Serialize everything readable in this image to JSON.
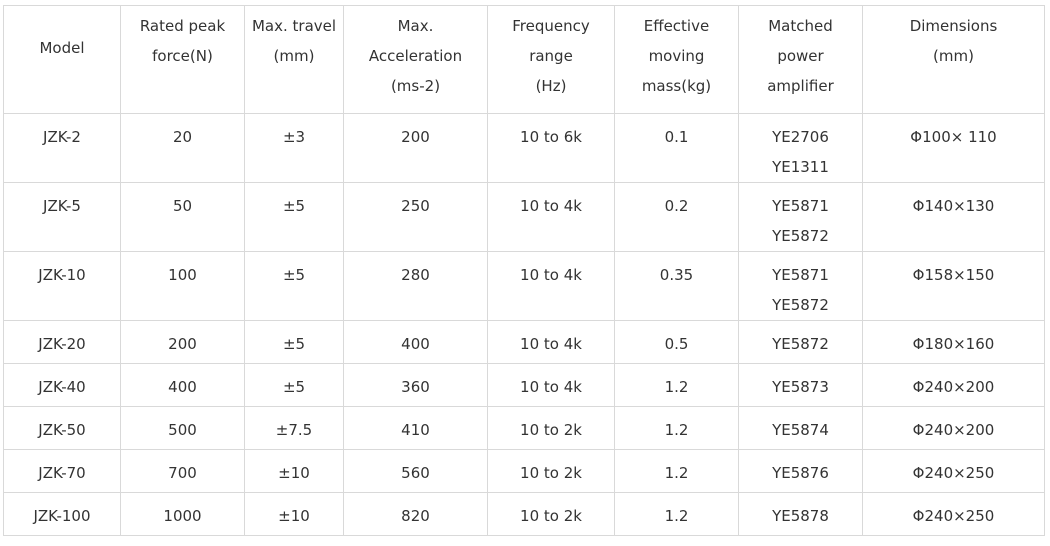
{
  "table": {
    "headers": [
      [
        "Model"
      ],
      [
        "Rated peak",
        "force(N)"
      ],
      [
        "Max. travel",
        "(mm)"
      ],
      [
        "Max.",
        "Acceleration",
        "(ms-2)"
      ],
      [
        "Frequency",
        "range",
        "(Hz)"
      ],
      [
        "Effective",
        "moving",
        "mass(kg)"
      ],
      [
        "Matched",
        "power",
        "amplifier"
      ],
      [
        "Dimensions",
        "(mm)"
      ]
    ],
    "rows": [
      {
        "model": "JZK-2",
        "force": "20",
        "travel": "±3",
        "accel": "200",
        "freq": "10 to 6k",
        "mass": "0.1",
        "amp1": "YE2706",
        "amp2": "YE1311",
        "dim": "Φ100× 110"
      },
      {
        "model": "JZK-5",
        "force": "50",
        "travel": "±5",
        "accel": "250",
        "freq": "10 to 4k",
        "mass": "0.2",
        "amp1": "YE5871",
        "amp2": "YE5872",
        "dim": "Φ140×130"
      },
      {
        "model": "JZK-10",
        "force": "100",
        "travel": "±5",
        "accel": "280",
        "freq": "10 to 4k",
        "mass": "0.35",
        "amp1": "YE5871",
        "amp2": "YE5872",
        "dim": "Φ158×150"
      },
      {
        "model": "JZK-20",
        "force": "200",
        "travel": "±5",
        "accel": "400",
        "freq": "10 to 4k",
        "mass": "0.5",
        "amp1": "YE5872",
        "dim": "Φ180×160"
      },
      {
        "model": "JZK-40",
        "force": "400",
        "travel": "±5",
        "accel": "360",
        "freq": "10 to 4k",
        "mass": "1.2",
        "amp1": "YE5873",
        "dim": "Φ240×200"
      },
      {
        "model": "JZK-50",
        "force": "500",
        "travel": "±7.5",
        "accel": "410",
        "freq": "10 to 2k",
        "mass": "1.2",
        "amp1": "YE5874",
        "dim": "Φ240×200"
      },
      {
        "model": "JZK-70",
        "force": "700",
        "travel": "±10",
        "accel": "560",
        "freq": "10 to 2k",
        "mass": "1.2",
        "amp1": "YE5876",
        "dim": "Φ240×250"
      },
      {
        "model": "JZK-100",
        "force": "1000",
        "travel": "±10",
        "accel": "820",
        "freq": "10 to 2k",
        "mass": "1.2",
        "amp1": "YE5878",
        "dim": "Φ240×250"
      }
    ]
  }
}
